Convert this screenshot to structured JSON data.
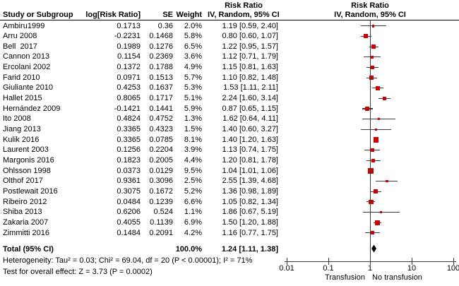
{
  "chart_data": {
    "type": "forest",
    "effect_header": {
      "line1": "Risk Ratio",
      "line2": "IV, Random, 95% CI"
    },
    "columns": [
      "Study or Subgroup",
      "log[Risk Ratio]",
      "SE",
      "Weight",
      "IV, Random, 95% CI"
    ],
    "studies": [
      {
        "name": "Ambiru1999",
        "log_rr": "0.1713",
        "se": "0.36",
        "weight": "2.0%",
        "ci_text": "1.19 [0.59, 2.40]",
        "rr": 1.19,
        "lo": 0.59,
        "hi": 2.4,
        "w": 2.0
      },
      {
        "name": "Arru 2008",
        "log_rr": "-0.2231",
        "se": "0.1468",
        "weight": "5.8%",
        "ci_text": "0.80 [0.60, 1.07]",
        "rr": 0.8,
        "lo": 0.6,
        "hi": 1.07,
        "w": 5.8
      },
      {
        "name": "Bell  2017",
        "log_rr": "0.1989",
        "se": "0.1276",
        "weight": "6.5%",
        "ci_text": "1.22 [0.95, 1.57]",
        "rr": 1.22,
        "lo": 0.95,
        "hi": 1.57,
        "w": 6.5
      },
      {
        "name": "Cannon 2013",
        "log_rr": "0.1154",
        "se": "0.2369",
        "weight": "3.6%",
        "ci_text": "1.12 [0.71, 1.79]",
        "rr": 1.12,
        "lo": 0.71,
        "hi": 1.79,
        "w": 3.6
      },
      {
        "name": "Ercolani 2002",
        "log_rr": "0.1372",
        "se": "0.1788",
        "weight": "4.9%",
        "ci_text": "1.15 [0.81, 1.63]",
        "rr": 1.15,
        "lo": 0.81,
        "hi": 1.63,
        "w": 4.9
      },
      {
        "name": "Farid 2010",
        "log_rr": "0.0971",
        "se": "0.1513",
        "weight": "5.7%",
        "ci_text": "1.10 [0.82, 1.48]",
        "rr": 1.1,
        "lo": 0.82,
        "hi": 1.48,
        "w": 5.7
      },
      {
        "name": "Giuliante 2010",
        "log_rr": "0.4253",
        "se": "0.1637",
        "weight": "5.3%",
        "ci_text": "1.53 [1.11, 2.11]",
        "rr": 1.53,
        "lo": 1.11,
        "hi": 2.11,
        "w": 5.3
      },
      {
        "name": "Hallet 2015",
        "log_rr": "0.8065",
        "se": "0.1717",
        "weight": "5.1%",
        "ci_text": "2.24 [1.60, 3.14]",
        "rr": 2.24,
        "lo": 1.6,
        "hi": 3.14,
        "w": 5.1
      },
      {
        "name": "Hernández 2009",
        "log_rr": "-0.1421",
        "se": "0.1441",
        "weight": "5.9%",
        "ci_text": "0.87 [0.65, 1.15]",
        "rr": 0.87,
        "lo": 0.65,
        "hi": 1.15,
        "w": 5.9
      },
      {
        "name": "Ito 2008",
        "log_rr": "0.4824",
        "se": "0.4752",
        "weight": "1.3%",
        "ci_text": "1.62 [0.64, 4.11]",
        "rr": 1.62,
        "lo": 0.64,
        "hi": 4.11,
        "w": 1.3
      },
      {
        "name": "Jiang 2013",
        "log_rr": "0.3365",
        "se": "0.4323",
        "weight": "1.5%",
        "ci_text": "1.40 [0.60, 3.27]",
        "rr": 1.4,
        "lo": 0.6,
        "hi": 3.27,
        "w": 1.5
      },
      {
        "name": "Kulik 2016",
        "log_rr": "0.3365",
        "se": "0.0785",
        "weight": "8.1%",
        "ci_text": "1.40 [1.20, 1.63]",
        "rr": 1.4,
        "lo": 1.2,
        "hi": 1.63,
        "w": 8.1
      },
      {
        "name": "Laurent 2003",
        "log_rr": "0.1256",
        "se": "0.2204",
        "weight": "3.9%",
        "ci_text": "1.13 [0.74, 1.75]",
        "rr": 1.13,
        "lo": 0.74,
        "hi": 1.75,
        "w": 3.9
      },
      {
        "name": "Margonis 2016",
        "log_rr": "0.1823",
        "se": "0.2005",
        "weight": "4.4%",
        "ci_text": "1.20 [0.81, 1.78]",
        "rr": 1.2,
        "lo": 0.81,
        "hi": 1.78,
        "w": 4.4
      },
      {
        "name": "Ohlsson 1998",
        "log_rr": "0.0373",
        "se": "0.0129",
        "weight": "9.5%",
        "ci_text": "1.04 [1.01, 1.06]",
        "rr": 1.04,
        "lo": 1.01,
        "hi": 1.06,
        "w": 9.5
      },
      {
        "name": "Olthof 2017",
        "log_rr": "0.9361",
        "se": "0.3096",
        "weight": "2.5%",
        "ci_text": "2.55 [1.39, 4.68]",
        "rr": 2.55,
        "lo": 1.39,
        "hi": 4.68,
        "w": 2.5
      },
      {
        "name": "Postlewait 2016",
        "log_rr": "0.3075",
        "se": "0.1672",
        "weight": "5.2%",
        "ci_text": "1.36 [0.98, 1.89]",
        "rr": 1.36,
        "lo": 0.98,
        "hi": 1.89,
        "w": 5.2
      },
      {
        "name": "Ribeiro 2012",
        "log_rr": "0.0484",
        "se": "0.1239",
        "weight": "6.6%",
        "ci_text": "1.05 [0.82, 1.34]",
        "rr": 1.05,
        "lo": 0.82,
        "hi": 1.34,
        "w": 6.6
      },
      {
        "name": "Shiba 2013",
        "log_rr": "0.6206",
        "se": "0.524",
        "weight": "1.1%",
        "ci_text": "1.86 [0.67, 5.19]",
        "rr": 1.86,
        "lo": 0.67,
        "hi": 5.19,
        "w": 1.1
      },
      {
        "name": "Zakaria 2007",
        "log_rr": "0.4055",
        "se": "0.1139",
        "weight": "6.9%",
        "ci_text": "1.50 [1.20, 1.88]",
        "rr": 1.5,
        "lo": 1.2,
        "hi": 1.88,
        "w": 6.9
      },
      {
        "name": "Zimmitti 2016",
        "log_rr": "0.1484",
        "se": "0.2091",
        "weight": "4.2%",
        "ci_text": "1.16 [0.77, 1.75]",
        "rr": 1.16,
        "lo": 0.77,
        "hi": 1.75,
        "w": 4.2
      }
    ],
    "total": {
      "label": "Total (95% CI)",
      "weight": "100.0%",
      "ci_text": "1.24 [1.11, 1.38]",
      "rr": 1.24,
      "lo": 1.11,
      "hi": 1.38
    },
    "heterogeneity": "Heterogeneity: Tau² = 0.03; Chi² = 69.04, df = 20 (P < 0.00001); I² = 71%",
    "overall_effect": "Test for overall effect: Z = 3.73 (P = 0.0002)",
    "x_axis": {
      "scale": "log10",
      "xlim": [
        0.01,
        100
      ],
      "ticks": [
        0.01,
        0.1,
        1,
        10,
        100
      ],
      "tick_labels": [
        "0.01",
        "0.1",
        "1",
        "10",
        "100"
      ],
      "left_label": "Transfusion",
      "right_label": "No transfusion"
    },
    "colors": {
      "marker": "#cc0000",
      "diamond": "#000000",
      "line": "#3c3c3c",
      "text": "#000000",
      "background": "#ffffff"
    }
  }
}
